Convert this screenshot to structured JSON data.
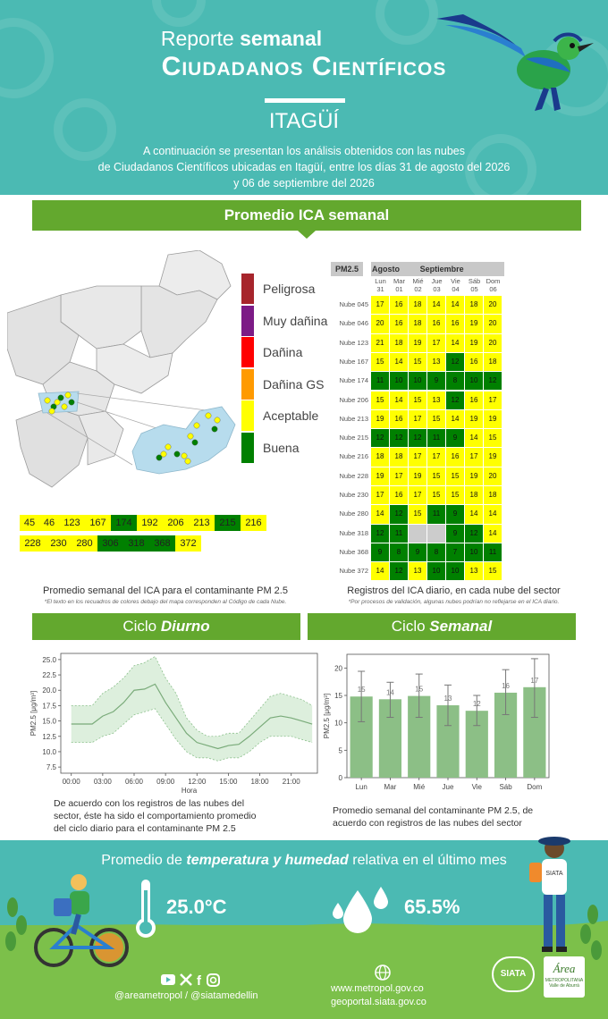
{
  "header": {
    "title_light": "Reporte",
    "title_bold": "semanal",
    "subtitle": "Ciudadanos Científicos",
    "city": "ITAGÜÍ",
    "description_lines": [
      "A continuación se presentan los análisis obtenidos con las nubes",
      "de Ciudadanos Científicos ubicadas en Itagüí, entre los días 31 de agosto del 2026",
      "y 06 de septiembre del 2026"
    ]
  },
  "ica_section": {
    "title": "Promedio ICA semanal",
    "legend": [
      {
        "label": "Peligrosa",
        "color": "#a7252c"
      },
      {
        "label": "Muy dañina",
        "color": "#7c1b86"
      },
      {
        "label": "Dañina",
        "color": "#ff0000"
      },
      {
        "label": "Dañina GS",
        "color": "#ff9a00"
      },
      {
        "label": "Aceptable",
        "color": "#ffff00"
      },
      {
        "label": "Buena",
        "color": "#008000"
      }
    ],
    "nube_codes_row1": [
      {
        "code": "45",
        "level": "Aceptable"
      },
      {
        "code": "46",
        "level": "Aceptable"
      },
      {
        "code": "123",
        "level": "Aceptable"
      },
      {
        "code": "167",
        "level": "Aceptable"
      },
      {
        "code": "174",
        "level": "Buena"
      },
      {
        "code": "192",
        "level": "Aceptable"
      },
      {
        "code": "206",
        "level": "Aceptable"
      },
      {
        "code": "213",
        "level": "Aceptable"
      },
      {
        "code": "215",
        "level": "Buena"
      },
      {
        "code": "216",
        "level": "Aceptable"
      }
    ],
    "nube_codes_row2": [
      {
        "code": "228",
        "level": "Aceptable"
      },
      {
        "code": "230",
        "level": "Aceptable"
      },
      {
        "code": "280",
        "level": "Aceptable"
      },
      {
        "code": "306",
        "level": "Buena"
      },
      {
        "code": "318",
        "level": "Buena"
      },
      {
        "code": "368",
        "level": "Buena"
      },
      {
        "code": "372",
        "level": "Aceptable"
      }
    ],
    "caption_left": "Promedio semanal del ICA para el contaminante PM 2.5",
    "note_left": "*El texto en los recuadros de colores debajo del mapa corresponden al Código de cada Nube.",
    "caption_right": "Registros del ICA diario, en cada nube del sector",
    "note_right": "*Por procesos de validación, algunas nubes podrían no reflejarse en el ICA diario."
  },
  "daily_table": {
    "pollutant": "PM2.5",
    "month1": "Agosto",
    "month2": "Septiembre",
    "days": [
      {
        "name": "Lun",
        "num": "31"
      },
      {
        "name": "Mar",
        "num": "01"
      },
      {
        "name": "Mié",
        "num": "02"
      },
      {
        "name": "Jue",
        "num": "03"
      },
      {
        "name": "Vie",
        "num": "04"
      },
      {
        "name": "Sáb",
        "num": "05"
      },
      {
        "name": "Dom",
        "num": "06"
      }
    ],
    "rows": [
      {
        "label": "Nube 045",
        "values": [
          "17",
          "16",
          "18",
          "14",
          "14",
          "18",
          "20"
        ]
      },
      {
        "label": "Nube 046",
        "values": [
          "20",
          "16",
          "18",
          "16",
          "16",
          "19",
          "20"
        ]
      },
      {
        "label": "Nube 123",
        "values": [
          "21",
          "18",
          "19",
          "17",
          "14",
          "19",
          "20"
        ]
      },
      {
        "label": "Nube 167",
        "values": [
          "15",
          "14",
          "15",
          "13",
          "12",
          "16",
          "18"
        ]
      },
      {
        "label": "Nube 174",
        "values": [
          "11",
          "10",
          "10",
          "9",
          "8",
          "10",
          "12"
        ]
      },
      {
        "label": "Nube 206",
        "values": [
          "15",
          "14",
          "15",
          "13",
          "12",
          "16",
          "17"
        ]
      },
      {
        "label": "Nube 213",
        "values": [
          "19",
          "16",
          "17",
          "15",
          "14",
          "19",
          "19"
        ]
      },
      {
        "label": "Nube 215",
        "values": [
          "12",
          "12",
          "12",
          "11",
          "9",
          "14",
          "15"
        ]
      },
      {
        "label": "Nube 216",
        "values": [
          "18",
          "18",
          "17",
          "17",
          "16",
          "17",
          "19"
        ]
      },
      {
        "label": "Nube 228",
        "values": [
          "19",
          "17",
          "19",
          "15",
          "15",
          "19",
          "20"
        ]
      },
      {
        "label": "Nube 230",
        "values": [
          "17",
          "16",
          "17",
          "15",
          "15",
          "18",
          "18"
        ]
      },
      {
        "label": "Nube 280",
        "values": [
          "14",
          "12",
          "15",
          "11",
          "9",
          "14",
          "14"
        ]
      },
      {
        "label": "Nube 318",
        "values": [
          "12",
          "11",
          "",
          "",
          "9",
          "12",
          "14"
        ]
      },
      {
        "label": "Nube 368",
        "values": [
          "9",
          "8",
          "9",
          "8",
          "7",
          "10",
          "11"
        ]
      },
      {
        "label": "Nube 372",
        "values": [
          "14",
          "12",
          "13",
          "10",
          "10",
          "13",
          "15"
        ]
      }
    ],
    "colors": {
      "good": "#008000",
      "acceptable": "#ffff00",
      "missing": "#cccccc"
    }
  },
  "diurnal_section": {
    "title_light": "Ciclo",
    "title_bold": "Diurno",
    "caption_lines": [
      "De acuerdo con los registros de las nubes del",
      "sector, éste ha sido el comportamiento promedio",
      "del ciclo diario para el contaminante PM 2.5"
    ]
  },
  "weekly_section": {
    "title_light": "Ciclo",
    "title_bold": "Semanal",
    "caption_lines": [
      "Promedio semanal del contaminante PM 2.5, de",
      "acuerdo con registros de las nubes del sector"
    ]
  },
  "chart_data": [
    {
      "type": "line",
      "xlabel": "Hora",
      "ylabel": "PM2.5 [μg/m³]",
      "x_tick_labels": [
        "00:00",
        "03:00",
        "06:00",
        "09:00",
        "12:00",
        "15:00",
        "18:00",
        "21:00"
      ],
      "y_tick_labels": [
        "7.5",
        "10.0",
        "12.5",
        "15.0",
        "17.5",
        "20.0",
        "22.5",
        "25.0"
      ],
      "ylim": [
        6.5,
        26
      ],
      "xlim": [
        -1,
        23.5
      ],
      "x": [
        0,
        1,
        2,
        3,
        4,
        5,
        6,
        7,
        8,
        9,
        10,
        11,
        12,
        13,
        14,
        15,
        16,
        17,
        18,
        19,
        20,
        21,
        22,
        23
      ],
      "series": [
        {
          "mean": [
            14.5,
            14.5,
            14.5,
            15.8,
            16.5,
            18,
            20,
            20.2,
            21,
            18,
            15.5,
            13,
            11.5,
            11,
            10.5,
            11,
            11.2,
            12.5,
            14,
            15.5,
            15.8,
            15.5,
            15,
            14.5
          ],
          "upper": [
            17.5,
            17.5,
            17.5,
            19.5,
            20.5,
            22,
            24,
            24.5,
            25.5,
            22,
            19.5,
            15.5,
            13.5,
            12.5,
            12.5,
            13,
            13,
            15,
            17,
            19,
            19.5,
            19,
            18.5,
            17.5
          ],
          "lower": [
            11.5,
            11.5,
            11.5,
            12.5,
            13,
            14.5,
            16,
            16.5,
            17,
            14.5,
            12,
            10,
            9,
            9,
            8.5,
            9,
            9,
            10,
            11.5,
            12.5,
            12.5,
            12.5,
            12,
            11.5
          ]
        }
      ],
      "colors": {
        "line": "#7aab7a",
        "band": "#cfe8cf",
        "band_edge": "#8cc08c"
      }
    },
    {
      "type": "bar",
      "ylabel": "PM2.5 [μg/m³]",
      "categories": [
        "Lun",
        "Mar",
        "Mié",
        "Jue",
        "Vie",
        "Sáb",
        "Dom"
      ],
      "values": [
        15,
        14,
        15,
        13,
        12,
        16,
        17
      ],
      "display_values": [
        14.8,
        14.3,
        14.9,
        13.2,
        12.2,
        15.5,
        16.5
      ],
      "error_low": [
        10.2,
        11.0,
        11.0,
        9.5,
        9.5,
        11.5,
        11.0
      ],
      "error_high": [
        19.4,
        17.4,
        18.9,
        16.9,
        15.0,
        19.7,
        21.7
      ],
      "y_tick_labels": [
        "0",
        "5",
        "10",
        "15",
        "20"
      ],
      "ylim": [
        0,
        22.5
      ],
      "colors": {
        "bar": "#8cbf86",
        "error": "#777777"
      }
    }
  ],
  "footer": {
    "title_light1": "Promedio de",
    "title_bold": "temperatura y humedad",
    "title_light2": "relativa en el último mes",
    "temperature": "25.0°C",
    "humidity": "65.5%",
    "social_handles": "@areametropol / @siatamedellin",
    "url1": "www.metropol.gov.co",
    "url2": "geoportal.siata.gov.co",
    "siata_logo": "SIATA",
    "area_logo": "Área",
    "area_logo_sub": "METROPOLITANA Valle de Aburrá"
  },
  "map": {
    "points_color_good": "#008000",
    "points_color_acceptable": "#ffff00"
  }
}
